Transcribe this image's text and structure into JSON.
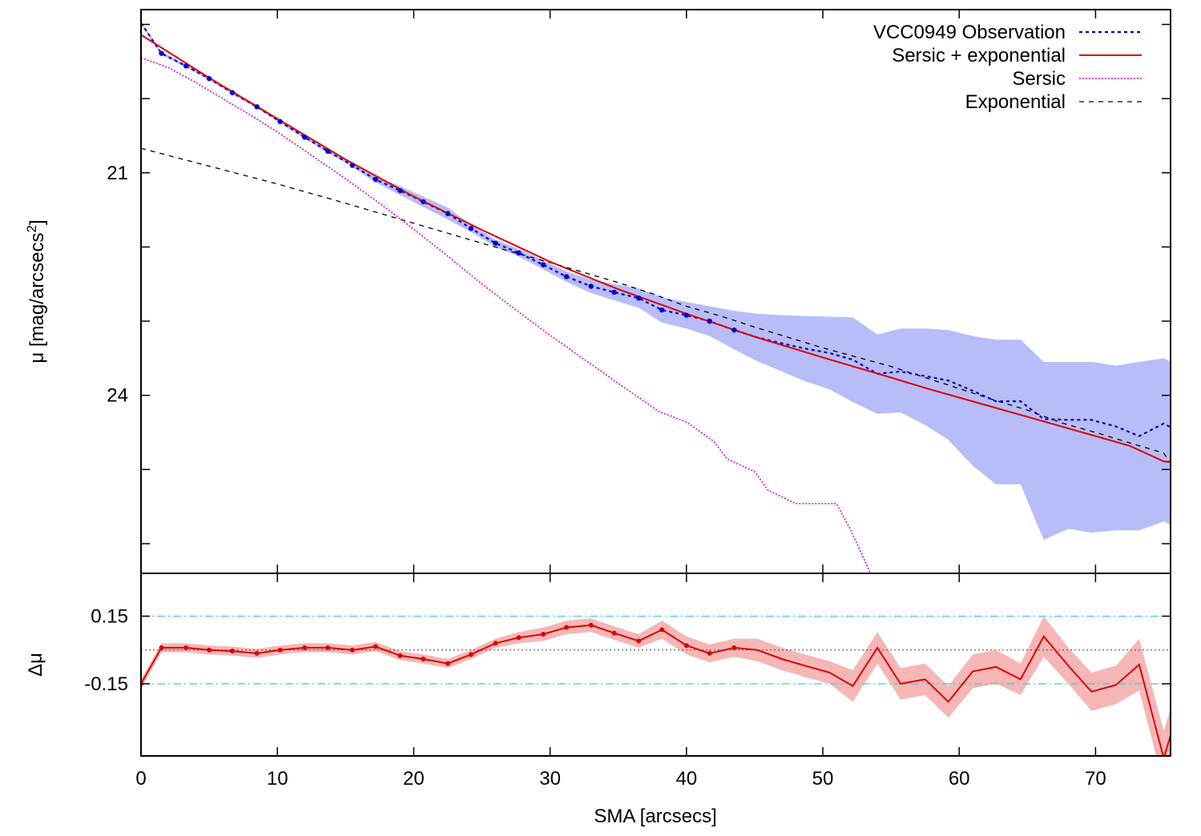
{
  "chart_data": [
    {
      "type": "line",
      "panel": "profile",
      "ylabel": "μ [mag/arcsecs",
      "ylabel_sup": "2",
      "ylabel_tail": "]",
      "y_inverted": true,
      "xlim": [
        0,
        75.5
      ],
      "ylim": [
        18.8,
        26.4
      ],
      "y_ticks": [
        21,
        24
      ],
      "y_minor_ticks": [
        19,
        20,
        22,
        23,
        25,
        26
      ],
      "x_ticks": [
        0,
        10,
        20,
        30,
        40,
        50,
        60,
        70
      ],
      "legend_position": "top-right",
      "legend": [
        {
          "label": "VCC0949 Observation",
          "color": "#0000cc",
          "dash": "dotted"
        },
        {
          "label": "Sersic + exponential",
          "color": "#dd0000",
          "dash": "solid"
        },
        {
          "label": "Sersic",
          "color": "#cc00cc",
          "dash": "fine-dotted"
        },
        {
          "label": "Exponential",
          "color": "#000000",
          "dash": "dashed"
        }
      ],
      "series": [
        {
          "name": "VCC0949 Observation",
          "color": "#0000cc",
          "points_x": [
            1.5,
            3.3,
            5.0,
            6.7,
            8.5,
            10.2,
            12.0,
            13.7,
            15.5,
            17.2,
            19.0,
            20.7,
            22.5,
            24.2,
            26.0,
            27.7,
            29.5,
            31.2,
            33.0,
            34.7,
            36.5,
            38.2,
            40.0,
            41.7,
            43.5
          ],
          "points_y": [
            19.39,
            19.56,
            19.73,
            19.92,
            20.11,
            20.31,
            20.52,
            20.71,
            20.9,
            21.09,
            21.24,
            21.39,
            21.55,
            21.75,
            21.95,
            22.08,
            22.24,
            22.4,
            22.53,
            22.61,
            22.69,
            22.85,
            22.92,
            23.0,
            23.12
          ],
          "x": [
            0,
            1.5,
            3.3,
            5.0,
            6.7,
            8.5,
            10.2,
            12.0,
            13.7,
            15.5,
            17.2,
            19.0,
            20.7,
            22.5,
            24.2,
            26.0,
            27.7,
            29.5,
            31.2,
            33.0,
            34.7,
            36.5,
            38.2,
            40.0,
            41.7,
            43.5,
            45.2,
            47.0,
            48.7,
            50.5,
            52.2,
            54.0,
            55.7,
            57.5,
            59.2,
            61.0,
            62.7,
            64.5,
            66.2,
            68.0,
            69.7,
            71.5,
            73.2,
            75.0,
            75.5
          ],
          "y": [
            18.98,
            19.39,
            19.56,
            19.73,
            19.92,
            20.11,
            20.31,
            20.52,
            20.71,
            20.9,
            21.09,
            21.24,
            21.39,
            21.55,
            21.75,
            21.95,
            22.08,
            22.24,
            22.4,
            22.53,
            22.61,
            22.69,
            22.85,
            22.92,
            23.0,
            23.12,
            23.22,
            23.3,
            23.37,
            23.43,
            23.52,
            23.71,
            23.68,
            23.74,
            23.8,
            23.94,
            24.08,
            24.08,
            24.32,
            24.33,
            24.33,
            24.42,
            24.55,
            24.38,
            24.43
          ],
          "band_lower": [
            18.96,
            19.37,
            19.54,
            19.71,
            19.9,
            20.09,
            20.29,
            20.5,
            20.69,
            20.88,
            21.05,
            21.18,
            21.32,
            21.47,
            21.7,
            21.9,
            22.03,
            22.18,
            22.33,
            22.44,
            22.5,
            22.56,
            22.68,
            22.74,
            22.8,
            22.86,
            22.9,
            22.92,
            22.93,
            22.94,
            22.95,
            23.18,
            23.1,
            23.1,
            23.12,
            23.2,
            23.25,
            23.25,
            23.55,
            23.55,
            23.55,
            23.6,
            23.55,
            23.5,
            23.55
          ],
          "band_upper": [
            19.0,
            19.41,
            19.58,
            19.75,
            19.94,
            20.13,
            20.33,
            20.54,
            20.73,
            20.92,
            21.13,
            21.3,
            21.46,
            21.63,
            21.8,
            22.0,
            22.13,
            22.3,
            22.47,
            22.62,
            22.72,
            22.82,
            23.02,
            23.1,
            23.2,
            23.38,
            23.54,
            23.68,
            23.81,
            23.92,
            24.09,
            24.25,
            24.23,
            24.4,
            24.6,
            24.95,
            25.2,
            25.2,
            25.95,
            25.8,
            25.85,
            25.82,
            25.82,
            25.7,
            25.75
          ]
        },
        {
          "name": "Sersic + exponential",
          "color": "#dd0000",
          "x": [
            0,
            5,
            10,
            15,
            20,
            25,
            30,
            35,
            40,
            45,
            50,
            55,
            57.5,
            60,
            62.5,
            65,
            67.5,
            70,
            72.5,
            75,
            75.5
          ],
          "y": [
            19.14,
            19.72,
            20.27,
            20.82,
            21.32,
            21.77,
            22.2,
            22.57,
            22.9,
            23.21,
            23.49,
            23.76,
            23.9,
            24.03,
            24.16,
            24.29,
            24.42,
            24.55,
            24.68,
            24.89,
            24.9
          ]
        },
        {
          "name": "Sersic",
          "color": "#cc00cc",
          "x": [
            0,
            2,
            4,
            6,
            8,
            10,
            12,
            15,
            18,
            20,
            22,
            25,
            28,
            30,
            33,
            35,
            38,
            40,
            42,
            43,
            45,
            46,
            48,
            50,
            51,
            52,
            53.5
          ],
          "y": [
            19.45,
            19.58,
            19.78,
            20.0,
            20.22,
            20.45,
            20.7,
            21.08,
            21.48,
            21.76,
            22.05,
            22.5,
            22.92,
            23.19,
            23.58,
            23.84,
            24.22,
            24.36,
            24.62,
            24.86,
            25.03,
            25.28,
            25.46,
            25.46,
            25.46,
            25.8,
            26.4
          ]
        },
        {
          "name": "Exponential",
          "color": "#000000",
          "x": [
            0,
            5,
            10,
            15,
            20,
            25,
            30,
            35,
            37.5,
            40,
            42.5,
            45,
            50,
            55,
            57.5,
            60,
            62.5,
            65,
            67.5,
            70,
            72.5,
            75,
            75.5
          ],
          "y": [
            20.67,
            20.91,
            21.15,
            21.41,
            21.68,
            21.95,
            22.21,
            22.48,
            22.63,
            22.8,
            22.93,
            23.08,
            23.36,
            23.61,
            23.76,
            23.91,
            24.06,
            24.2,
            24.37,
            24.5,
            24.64,
            24.78,
            24.91
          ]
        }
      ]
    },
    {
      "type": "line",
      "panel": "residual",
      "ylabel": "Δμ",
      "xlabel": "SMA [arcsecs]",
      "xlim": [
        0,
        75.5
      ],
      "ylim": [
        -0.47,
        0.34
      ],
      "y_ticks": [
        0.15,
        -0.15
      ],
      "y_tick_labels": [
        "0.15",
        "-0.15"
      ],
      "x_ticks": [
        0,
        10,
        20,
        30,
        40,
        50,
        60,
        70
      ],
      "reference_lines": [
        {
          "y": 0.15,
          "color": "#40d0d0",
          "dash": "dash-dot"
        },
        {
          "y": -0.15,
          "color": "#40d0d0",
          "dash": "dash-dot"
        },
        {
          "y": 0.0,
          "color": "#404040",
          "dash": "dotted"
        }
      ],
      "series": [
        {
          "name": "Δμ",
          "color": "#dd0000",
          "band_color": "#f4b0b0",
          "x": [
            0,
            1.5,
            3.3,
            5.0,
            6.7,
            8.5,
            10.2,
            12.0,
            13.7,
            15.5,
            17.2,
            19.0,
            20.7,
            22.5,
            24.2,
            26.0,
            27.7,
            29.5,
            31.2,
            33.0,
            34.7,
            36.5,
            38.2,
            40.0,
            41.7,
            43.5,
            45.2,
            47.0,
            48.7,
            50.5,
            52.2,
            54.0,
            55.7,
            57.5,
            59.2,
            61.0,
            62.7,
            64.5,
            66.2,
            68.0,
            69.7,
            71.5,
            73.2,
            75.0,
            75.5
          ],
          "y": [
            -0.15,
            0.01,
            0.01,
            0.0,
            -0.005,
            -0.015,
            0.0,
            0.01,
            0.01,
            0.0,
            0.015,
            -0.025,
            -0.04,
            -0.06,
            -0.02,
            0.03,
            0.055,
            0.07,
            0.1,
            0.11,
            0.075,
            0.04,
            0.09,
            0.02,
            -0.015,
            0.01,
            0.0,
            -0.04,
            -0.07,
            -0.1,
            -0.16,
            0.01,
            -0.15,
            -0.13,
            -0.23,
            -0.095,
            -0.075,
            -0.13,
            0.06,
            -0.07,
            -0.185,
            -0.155,
            -0.065,
            -0.48,
            -0.38
          ],
          "band_lower": [
            -0.17,
            -0.01,
            -0.01,
            -0.02,
            -0.025,
            -0.035,
            -0.02,
            -0.01,
            -0.01,
            -0.02,
            -0.005,
            -0.045,
            -0.06,
            -0.08,
            -0.04,
            0.01,
            0.03,
            0.04,
            0.07,
            0.08,
            0.045,
            0.01,
            0.05,
            -0.02,
            -0.055,
            -0.03,
            -0.05,
            -0.09,
            -0.12,
            -0.15,
            -0.23,
            -0.06,
            -0.22,
            -0.2,
            -0.3,
            -0.17,
            -0.15,
            -0.2,
            -0.03,
            -0.15,
            -0.27,
            -0.24,
            -0.18,
            -0.6,
            -0.5
          ],
          "band_upper": [
            -0.13,
            0.03,
            0.03,
            0.02,
            0.015,
            0.005,
            0.02,
            0.03,
            0.03,
            0.02,
            0.035,
            -0.005,
            -0.02,
            -0.04,
            0.0,
            0.05,
            0.08,
            0.1,
            0.13,
            0.14,
            0.105,
            0.07,
            0.13,
            0.06,
            0.025,
            0.05,
            0.05,
            0.01,
            -0.02,
            -0.05,
            -0.09,
            0.08,
            -0.08,
            -0.06,
            -0.16,
            -0.02,
            0.0,
            -0.06,
            0.15,
            0.01,
            -0.1,
            -0.07,
            0.05,
            -0.36,
            -0.26
          ]
        }
      ]
    }
  ]
}
